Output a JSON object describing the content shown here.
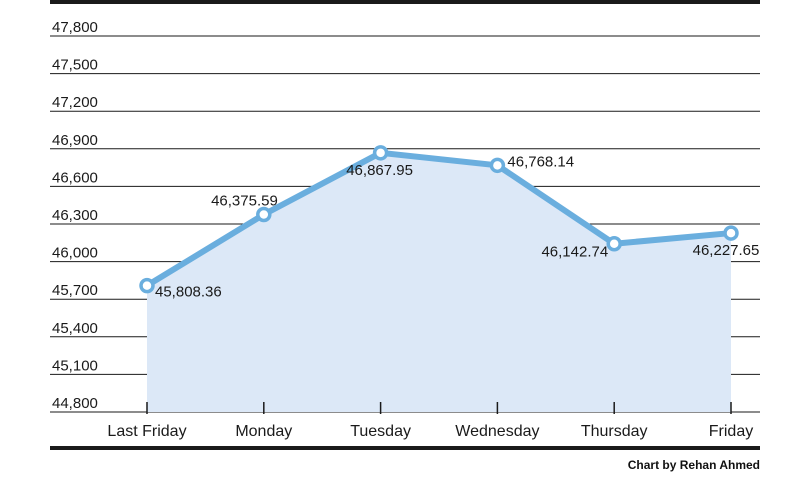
{
  "chart_data": {
    "type": "area",
    "categories": [
      "Last Friday",
      "Monday",
      "Tuesday",
      "Wednesday",
      "Thursday",
      "Friday"
    ],
    "values": [
      45808.36,
      46375.59,
      46867.95,
      46768.14,
      46142.74,
      46227.65
    ],
    "value_labels": [
      "45,808.36",
      "46,375.59",
      "46,867.95",
      "46,768.14",
      "46,142.74",
      "46,227.65"
    ],
    "yticks": [
      "44,800",
      "45,100",
      "45,400",
      "45,700",
      "46,000",
      "46,300",
      "46,600",
      "46,900",
      "47,200",
      "47,500",
      "47,800"
    ],
    "ylim": [
      44800,
      47800
    ],
    "grid": true,
    "colors": {
      "line": "#6aaede",
      "fill": "#dce8f7",
      "grid": "#1a1a1a",
      "marker_fill": "#ffffff"
    }
  },
  "credit": "Chart by Rehan Ahmed"
}
